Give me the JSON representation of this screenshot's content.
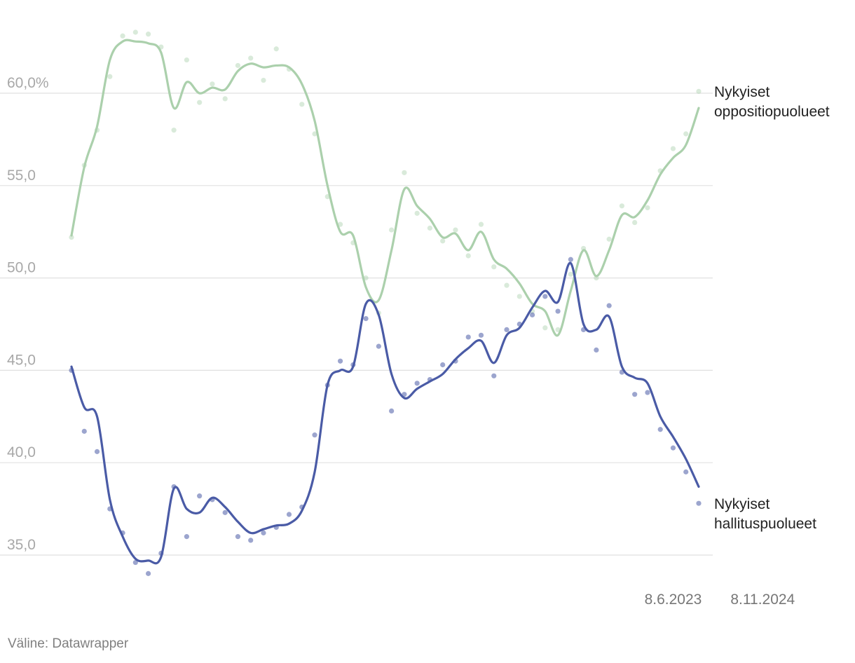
{
  "chart_data": {
    "type": "line",
    "title": "",
    "xlabel": "",
    "ylabel": "",
    "ylim": [
      34,
      63
    ],
    "y_ticks": [
      {
        "value": 60,
        "label": "60,0%"
      },
      {
        "value": 55,
        "label": "55,0"
      },
      {
        "value": 50,
        "label": "50,0"
      },
      {
        "value": 45,
        "label": "45,0"
      },
      {
        "value": 40,
        "label": "40,0"
      },
      {
        "value": 35,
        "label": "35,0"
      }
    ],
    "x_ticks": [
      {
        "index": 47,
        "label": "8.6.2023"
      },
      {
        "index": 54,
        "label": "8.11.2024"
      }
    ],
    "grid": true,
    "legend": "inline labels at right end of lines",
    "series": [
      {
        "name": "Nykyiset oppositiopuolueet",
        "label_lines": [
          "Nykyiset",
          "oppositiopuolueet"
        ],
        "color": "#abd0ac",
        "smoothed": [
          52.3,
          56.0,
          58.2,
          61.8,
          62.8,
          62.8,
          62.7,
          62.2,
          59.2,
          60.6,
          60.0,
          60.3,
          60.2,
          61.2,
          61.6,
          61.4,
          61.5,
          61.4,
          60.5,
          58.5,
          55.0,
          52.5,
          52.3,
          49.5,
          48.8,
          51.5,
          54.8,
          53.9,
          53.2,
          52.2,
          52.4,
          51.5,
          52.5,
          51.0,
          50.5,
          49.7,
          48.6,
          48.2,
          46.9,
          49.3,
          51.5,
          50.1,
          51.5,
          53.4,
          53.3,
          54.2,
          55.6,
          56.5,
          57.2,
          59.2
        ],
        "points": [
          52.2,
          56.1,
          58.0,
          60.9,
          63.1,
          63.3,
          63.2,
          62.5,
          58.0,
          61.8,
          59.5,
          60.5,
          59.7,
          61.5,
          61.9,
          60.7,
          62.4,
          61.3,
          59.4,
          57.8,
          54.4,
          52.9,
          51.9,
          50.0,
          48.1,
          52.6,
          55.7,
          53.5,
          52.7,
          52.0,
          52.6,
          51.2,
          52.9,
          50.6,
          49.6,
          49.0,
          48.2,
          47.3,
          47.2,
          50.2,
          51.6,
          50.0,
          52.1,
          53.9,
          53.0,
          53.8,
          55.8,
          57.0,
          57.8,
          60.1
        ]
      },
      {
        "name": "Nykyiset hallituspuolueet",
        "label_lines": [
          "Nykyiset",
          "hallituspuolueet"
        ],
        "color": "#4a5ba6",
        "smoothed": [
          45.2,
          43.0,
          42.5,
          38.0,
          36.0,
          34.8,
          34.7,
          34.9,
          38.6,
          37.5,
          37.3,
          38.1,
          37.6,
          36.8,
          36.2,
          36.4,
          36.6,
          36.7,
          37.4,
          39.5,
          44.2,
          45.0,
          45.2,
          48.6,
          48.0,
          44.8,
          43.5,
          44.0,
          44.4,
          44.8,
          45.6,
          46.2,
          46.6,
          45.4,
          46.9,
          47.3,
          48.4,
          49.3,
          48.7,
          50.8,
          47.5,
          47.2,
          47.9,
          45.2,
          44.6,
          44.3,
          42.5,
          41.4,
          40.2,
          38.7
        ],
        "points": [
          45.0,
          41.7,
          40.6,
          37.5,
          36.2,
          34.6,
          34.0,
          35.1,
          38.7,
          36.0,
          38.2,
          38.0,
          37.3,
          36.0,
          35.8,
          36.2,
          36.5,
          37.2,
          37.6,
          41.5,
          44.2,
          45.5,
          45.3,
          47.8,
          46.3,
          42.8,
          43.7,
          44.3,
          44.5,
          45.3,
          45.5,
          46.8,
          46.9,
          44.7,
          47.2,
          47.5,
          48.0,
          49.0,
          48.2,
          51.0,
          47.2,
          46.1,
          48.5,
          44.9,
          43.7,
          43.8,
          41.8,
          40.8,
          39.5,
          37.8
        ]
      }
    ]
  },
  "footer": {
    "source": "Väline: Datawrapper"
  }
}
